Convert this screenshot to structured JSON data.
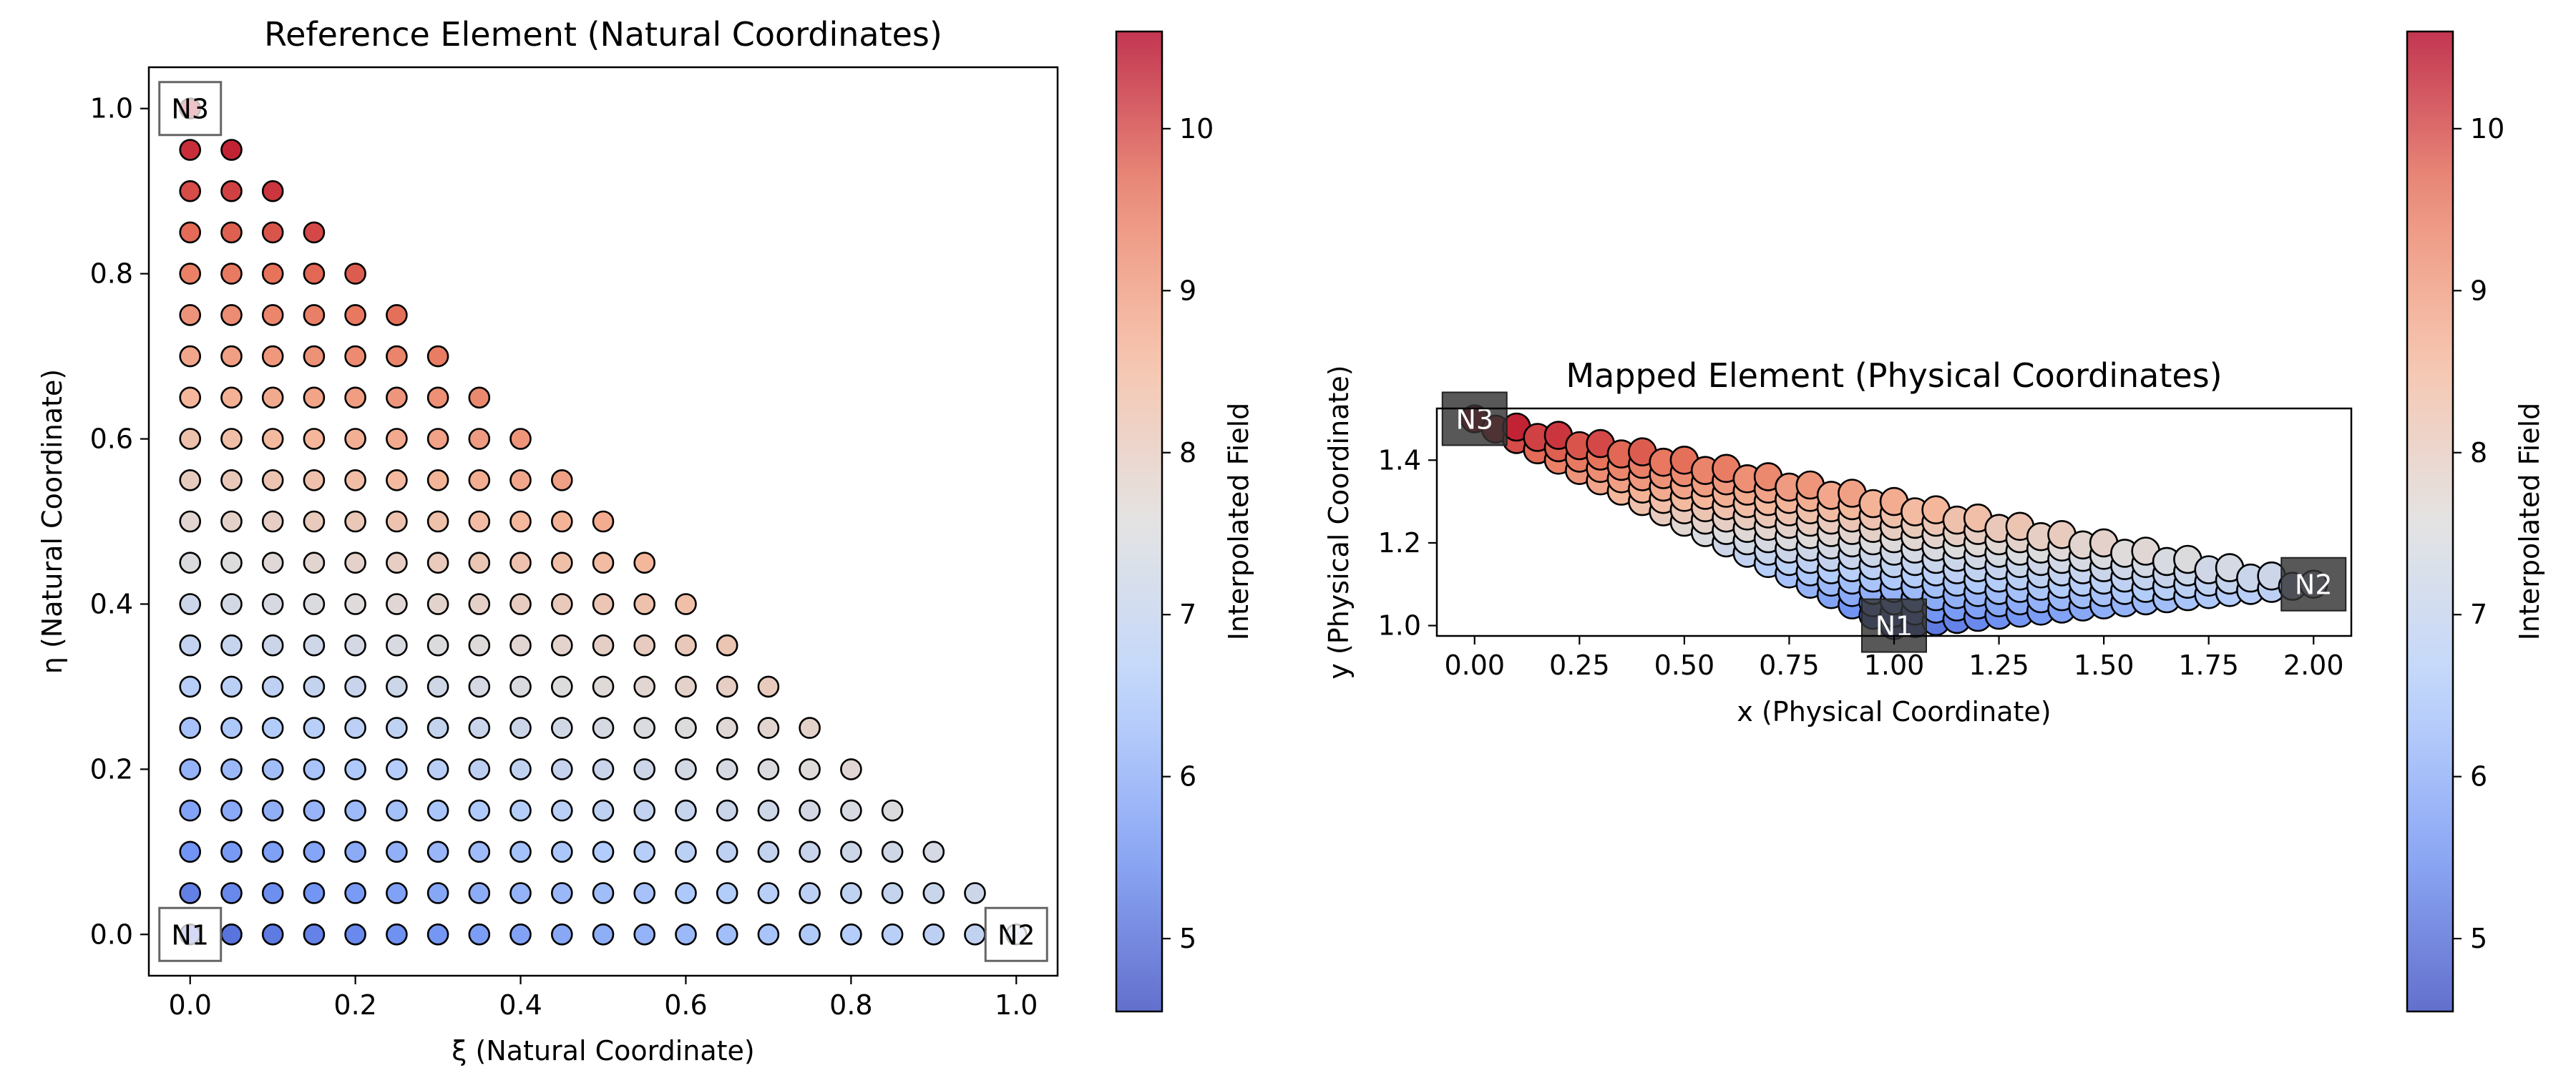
{
  "chart_data": [
    {
      "type": "scatter",
      "title": "Reference Element (Natural Coordinates)",
      "xlabel": "ξ (Natural Coordinate)",
      "ylabel": "η (Natural Coordinate)",
      "xlim": [
        -0.05,
        1.05
      ],
      "ylim": [
        -0.05,
        1.05
      ],
      "xticks": [
        0.0,
        0.2,
        0.4,
        0.6,
        0.8,
        1.0
      ],
      "yticks": [
        0.0,
        0.2,
        0.4,
        0.6,
        0.8,
        1.0
      ],
      "tick_labels": [
        "0.0",
        "0.2",
        "0.4",
        "0.6",
        "0.8",
        "1.0"
      ],
      "grid": false,
      "point_grid": {
        "resolution": 20,
        "domain": "xi >= 0, eta >= 0, xi + eta <= 1"
      },
      "node_labels": [
        {
          "text": "N1",
          "xi": 0.0,
          "eta": 0.0
        },
        {
          "text": "N2",
          "xi": 1.0,
          "eta": 0.0
        },
        {
          "text": "N3",
          "xi": 0.0,
          "eta": 1.0
        }
      ],
      "field": {
        "f1": 5.0,
        "f2": 7.0,
        "f3": 10.5
      },
      "colorbar": {
        "label": "Interpolated Field",
        "range": [
          4.55,
          10.6
        ],
        "ticks": [
          5,
          6,
          7,
          8,
          9,
          10
        ],
        "colormap": "coolwarm",
        "stops": [
          "#3b4cc0",
          "#7295f4",
          "#b3cdfb",
          "#dddcdc",
          "#f5b79b",
          "#e7745b",
          "#b40426"
        ]
      }
    },
    {
      "type": "scatter",
      "title": "Mapped Element (Physical Coordinates)",
      "xlabel": "x (Physical Coordinate)",
      "ylabel": "y (Physical Coordinate)",
      "xlim": [
        -0.09,
        2.09
      ],
      "ylim": [
        0.975,
        1.525
      ],
      "xticks": [
        0.0,
        0.25,
        0.5,
        0.75,
        1.0,
        1.25,
        1.5,
        1.75,
        2.0
      ],
      "xtick_labels": [
        "0.00",
        "0.25",
        "0.50",
        "0.75",
        "1.00",
        "1.25",
        "1.50",
        "1.75",
        "2.00"
      ],
      "yticks": [
        1.0,
        1.2,
        1.4
      ],
      "ytick_labels": [
        "1.0",
        "1.2",
        "1.4"
      ],
      "grid": false,
      "nodes": [
        {
          "text": "N1",
          "x": 1.0,
          "y": 1.0
        },
        {
          "text": "N2",
          "x": 2.0,
          "y": 1.1
        },
        {
          "text": "N3",
          "x": 0.0,
          "y": 1.5
        }
      ],
      "colorbar": {
        "label": "Interpolated Field",
        "range": [
          4.55,
          10.6
        ],
        "ticks": [
          5,
          6,
          7,
          8,
          9,
          10
        ]
      }
    }
  ]
}
